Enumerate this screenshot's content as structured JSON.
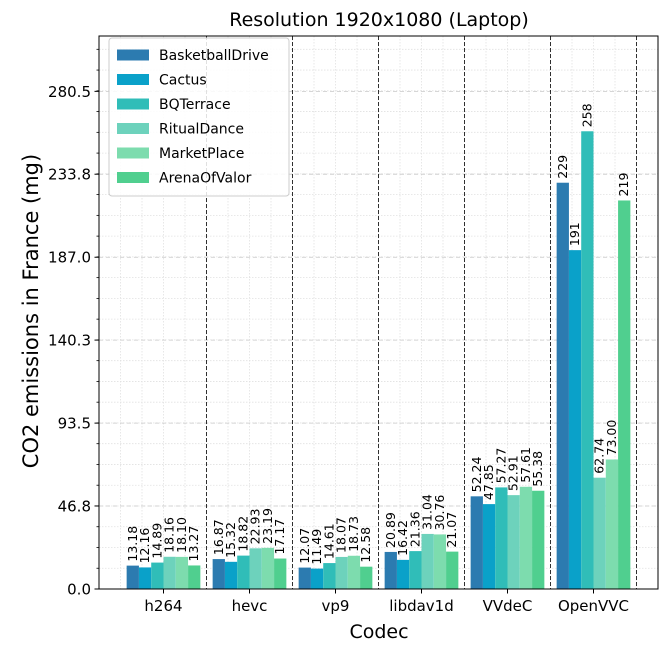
{
  "chart_data": {
    "type": "bar",
    "title": "Resolution 1920x1080 (Laptop)",
    "xlabel": "Codec",
    "ylabel": "CO2 emissions in France (mg)",
    "categories": [
      "h264",
      "hevc",
      "vp9",
      "libdav1d",
      "VVdeC",
      "OpenVVC"
    ],
    "yticks": [
      "0.0",
      "46.8",
      "93.5",
      "140.3",
      "187.0",
      "233.8",
      "280.5"
    ],
    "ylim": [
      0,
      311.7
    ],
    "grid": true,
    "legend_position": "top-left",
    "series": [
      {
        "name": "BasketballDrive",
        "color": "#2c7bb0",
        "values": [
          13.18,
          16.87,
          12.07,
          20.89,
          52.24,
          229
        ],
        "labels": [
          "13.18",
          "16.87",
          "12.07",
          "20.89",
          "52.24",
          "229"
        ]
      },
      {
        "name": "Cactus",
        "color": "#0aa1c9",
        "values": [
          12.16,
          15.32,
          11.49,
          16.42,
          47.85,
          191
        ],
        "labels": [
          "12.16",
          "15.32",
          "11.49",
          "16.42",
          "47.85",
          "191"
        ]
      },
      {
        "name": "BQTerrace",
        "color": "#30bdb8",
        "values": [
          14.89,
          18.82,
          14.61,
          21.36,
          57.27,
          258
        ],
        "labels": [
          "14.89",
          "18.82",
          "14.61",
          "21.36",
          "57.27",
          "258"
        ]
      },
      {
        "name": "RitualDance",
        "color": "#6dd2bc",
        "values": [
          18.16,
          22.93,
          18.07,
          31.04,
          52.91,
          62.74
        ],
        "labels": [
          "18.16",
          "22.93",
          "18.07",
          "31.04",
          "52.91",
          "62.74"
        ]
      },
      {
        "name": "MarketPlace",
        "color": "#7ddcae",
        "values": [
          18.1,
          23.19,
          18.73,
          30.76,
          57.61,
          73.0
        ],
        "labels": [
          "18.10",
          "23.19",
          "18.73",
          "30.76",
          "57.61",
          "73.00"
        ]
      },
      {
        "name": "ArenaOfValor",
        "color": "#50cf8f",
        "values": [
          13.27,
          17.17,
          12.58,
          21.07,
          55.38,
          219
        ],
        "labels": [
          "13.27",
          "17.17",
          "12.58",
          "21.07",
          "55.38",
          "219"
        ]
      }
    ]
  }
}
